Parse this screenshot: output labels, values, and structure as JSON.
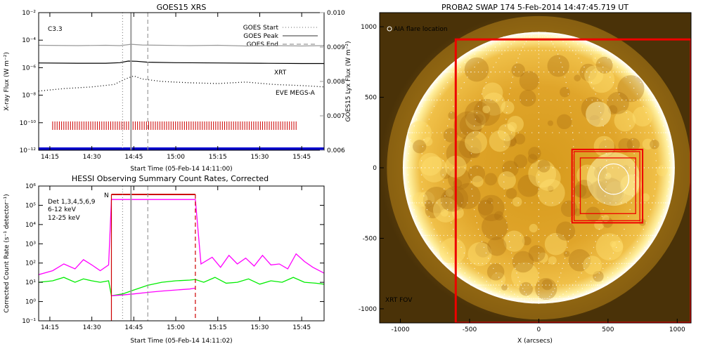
{
  "chart_data": [
    {
      "type": "line",
      "title": "GOES15 XRS",
      "xlabel": "Start Time (05-Feb-14 14:11:00)",
      "ylabel": "X-ray Flux (W m⁻²)",
      "y2label": "GOES15 Lyx Flux (W m⁻²)",
      "xlim": [
        "14:11",
        "15:53"
      ],
      "xticks": [
        "14:15",
        "14:30",
        "14:45",
        "15:00",
        "15:15",
        "15:30",
        "15:45"
      ],
      "yscale": "log",
      "ylim": [
        1e-12,
        0.01
      ],
      "yticks": [
        "10⁻¹²",
        "10⁻¹⁰",
        "10⁻⁸",
        "10⁻⁶",
        "10⁻⁴",
        "10⁻²"
      ],
      "y2lim": [
        0.006,
        0.01
      ],
      "y2ticks": [
        "0.006",
        "0.007",
        "0.008",
        "0.009",
        "0.010"
      ],
      "flare_class": "C3.3",
      "legend": [
        "GOES Start",
        "GOES Peak",
        "GOES End"
      ],
      "instrument_labels": {
        "xrt": "XRT",
        "eve": "EVE MEGS-A"
      },
      "colors": {
        "xrt": "#cc0000",
        "eve": "#0000cc",
        "lyx": "#999999"
      },
      "markers": {
        "start": "14:41",
        "peak": "14:44",
        "end": "14:50"
      },
      "series": [
        {
          "name": "lyx",
          "axis": "y2",
          "x": [
            "14:11",
            "14:25",
            "14:35",
            "14:40",
            "14:44",
            "14:48",
            "14:55",
            "15:05",
            "15:15",
            "15:25",
            "15:35",
            "15:45",
            "15:53"
          ],
          "values": [
            0.00905,
            0.00904,
            0.00905,
            0.00904,
            0.00908,
            0.00906,
            0.00905,
            0.00904,
            0.00905,
            0.00903,
            0.00904,
            0.00903,
            0.00904
          ]
        },
        {
          "name": "xray_long",
          "x": [
            "14:11",
            "14:25",
            "14:35",
            "14:40",
            "14:43",
            "14:46",
            "14:50",
            "15:00",
            "15:15",
            "15:30",
            "15:45",
            "15:53"
          ],
          "values": [
            2.2e-06,
            2.1e-06,
            2.1e-06,
            2.3e-06,
            3e-06,
            2.9e-06,
            2.5e-06,
            2.3e-06,
            2.2e-06,
            2.1e-06,
            2e-06,
            2e-06
          ]
        },
        {
          "name": "xray_short",
          "x": [
            "14:11",
            "14:20",
            "14:30",
            "14:38",
            "14:42",
            "14:45",
            "14:48",
            "14:55",
            "15:05",
            "15:15",
            "15:25",
            "15:35",
            "15:45",
            "15:53"
          ],
          "values": [
            2e-08,
            3e-08,
            4e-08,
            6e-08,
            1.5e-07,
            2.5e-07,
            1.5e-07,
            1e-07,
            8e-08,
            7e-08,
            9e-08,
            6e-08,
            5e-08,
            4e-08
          ]
        }
      ],
      "xrt_obs": {
        "start": "14:16",
        "end": "15:43",
        "count": 110
      },
      "eve_obs": {
        "start": "14:11",
        "end": "15:53",
        "level": 1e-12
      }
    },
    {
      "type": "line",
      "title": "HESSI Observing Summary Count Rates, Corrected",
      "xlabel": "Start Time (05-Feb-14 14:11:02)",
      "ylabel": "Corrected Count Rate (s⁻¹ detector⁻¹)",
      "xlim": [
        "14:11",
        "15:53"
      ],
      "xticks": [
        "14:15",
        "14:30",
        "14:45",
        "15:00",
        "15:15",
        "15:30",
        "15:45"
      ],
      "yscale": "log",
      "ylim": [
        0.1,
        1000000.0
      ],
      "yticks": [
        "10⁻¹",
        "10⁰",
        "10¹",
        "10²",
        "10³",
        "10⁴",
        "10⁵",
        "10⁶"
      ],
      "legend": [
        "Det 1,3,4,5,6,9",
        "6-12 keV",
        "12-25 keV"
      ],
      "night_label": "N",
      "night": {
        "start": "14:37",
        "end": "15:07"
      },
      "colors": {
        "low": "#ff00ff",
        "high": "#00ee00",
        "flag": "#cc0000"
      },
      "markers": {
        "start": "14:41",
        "peak": "14:44",
        "end": "14:50"
      },
      "series": [
        {
          "name": "6-12 keV",
          "x": [
            "14:11",
            "14:16",
            "14:20",
            "14:24",
            "14:27",
            "14:30",
            "14:33",
            "14:36",
            "14:37",
            "15:07",
            "15:09",
            "15:13",
            "15:16",
            "15:19",
            "15:22",
            "15:25",
            "15:28",
            "15:31",
            "15:34",
            "15:37",
            "15:40",
            "15:43",
            "15:46",
            "15:49",
            "15:53"
          ],
          "values": [
            25,
            40,
            90,
            50,
            150,
            80,
            40,
            80,
            200000,
            200000,
            90,
            200,
            60,
            250,
            90,
            180,
            70,
            250,
            80,
            90,
            50,
            300,
            120,
            60,
            30
          ]
        },
        {
          "name": "12-25 keV",
          "x": [
            "14:11",
            "14:16",
            "14:20",
            "14:24",
            "14:27",
            "14:30",
            "14:33",
            "14:36",
            "14:37",
            "14:41",
            "14:45",
            "14:50",
            "14:55",
            "15:00",
            "15:05",
            "15:07",
            "15:10",
            "15:14",
            "15:18",
            "15:22",
            "15:26",
            "15:30",
            "15:34",
            "15:38",
            "15:42",
            "15:46",
            "15:50",
            "15:53"
          ],
          "values": [
            10,
            12,
            18,
            10,
            15,
            12,
            10,
            12,
            2,
            2.5,
            4,
            7,
            10,
            12,
            13,
            14,
            10,
            18,
            9,
            10,
            15,
            8,
            12,
            10,
            18,
            10,
            9,
            8
          ]
        },
        {
          "name": "6-12 keV attenuated",
          "x": [
            "14:37",
            "14:41",
            "14:45",
            "14:50",
            "14:55",
            "15:00",
            "15:05",
            "15:07"
          ],
          "values": [
            2,
            2.2,
            2.5,
            3,
            3.5,
            4,
            4.5,
            5
          ]
        }
      ]
    },
    {
      "type": "heatmap",
      "title": "PROBA2 SWAP 174  5-Feb-2014 14:47:45.719 UT",
      "xlabel": "X (arcsecs)",
      "ylabel": "",
      "xlim": [
        -1150,
        1100
      ],
      "ylim": [
        -1100,
        1100
      ],
      "xticks": [
        "-1000",
        "-500",
        "0",
        "500",
        "1000"
      ],
      "yticks": [
        "-1000",
        "-500",
        "0",
        "500",
        "1000"
      ],
      "legend": [
        "AIA flare location"
      ],
      "fov_label": "XRT FOV",
      "solar_radius": 980,
      "flare_location": [
        540,
        -80
      ],
      "flare_circle_radius": 110,
      "fov_boxes": [
        {
          "name": "xrt-fov",
          "x0": -600,
          "x1": 1100,
          "y0": -1100,
          "y1": 910
        },
        {
          "name": "fov-box-outer",
          "x0": 240,
          "x1": 750,
          "y0": -390,
          "y1": 130
        },
        {
          "name": "fov-box-mid",
          "x0": 255,
          "x1": 730,
          "y0": -375,
          "y1": 115
        },
        {
          "name": "fov-box-inner",
          "x0": 300,
          "x1": 700,
          "y0": -325,
          "y1": 70
        }
      ],
      "colors": {
        "disk": "#e8b030",
        "corona": "#6a4a0c",
        "box": "#ee0000"
      }
    }
  ]
}
